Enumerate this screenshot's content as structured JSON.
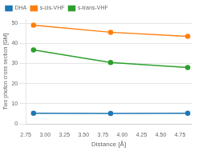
{
  "chart_data": {
    "type": "line",
    "x_label": "Distance [Å]",
    "y_label": "Two photon cross section [GM]",
    "x": [
      2.85,
      3.85,
      4.85
    ],
    "series": [
      {
        "name": "DHA",
        "color": "#1f77b4",
        "marker": "circle",
        "values": [
          5.3,
          5.2,
          5.3
        ]
      },
      {
        "name": "s-cis-VHF",
        "color": "#ff7f0e",
        "marker": "circle",
        "values": [
          49.0,
          45.5,
          43.5
        ]
      },
      {
        "name": "s-trans-VHF",
        "color": "#2ca02c",
        "marker": "circle",
        "values": [
          36.7,
          30.5,
          28.0
        ]
      }
    ],
    "xlim": [
      2.75,
      4.9
    ],
    "xticks": [
      2.75,
      {
        "value": 3,
        "label": "3.00"
      },
      3.25,
      {
        "value": 3.5,
        "label": "3.50"
      },
      3.75,
      {
        "value": 4,
        "label": "4.00"
      },
      4.25,
      {
        "value": 4.5,
        "label": "4.50"
      },
      4.75
    ],
    "ylim": [
      0,
      52
    ],
    "yticks": [
      0,
      10,
      20,
      30,
      40,
      50
    ],
    "grid": "y",
    "legend": "upper left"
  }
}
